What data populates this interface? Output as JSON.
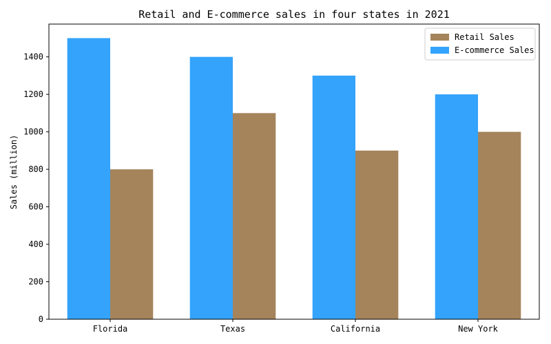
{
  "chart_data": {
    "type": "bar",
    "title": "Retail and E-commerce sales in four states in 2021",
    "xlabel": "",
    "ylabel": "Sales (million)",
    "categories": [
      "Florida",
      "Texas",
      "California",
      "New York"
    ],
    "series": [
      {
        "name": "E-commerce Sales",
        "values": [
          1500,
          1400,
          1300,
          1200
        ],
        "color": "#33a3fb"
      },
      {
        "name": "Retail Sales",
        "values": [
          800,
          1100,
          900,
          1000
        ],
        "color": "#a5845c"
      }
    ],
    "legend_order": [
      1,
      0
    ],
    "ylim": [
      0,
      1575
    ],
    "yticks": [
      0,
      200,
      400,
      600,
      800,
      1000,
      1200,
      1400
    ],
    "grid": false,
    "legend_position": "top-right"
  }
}
